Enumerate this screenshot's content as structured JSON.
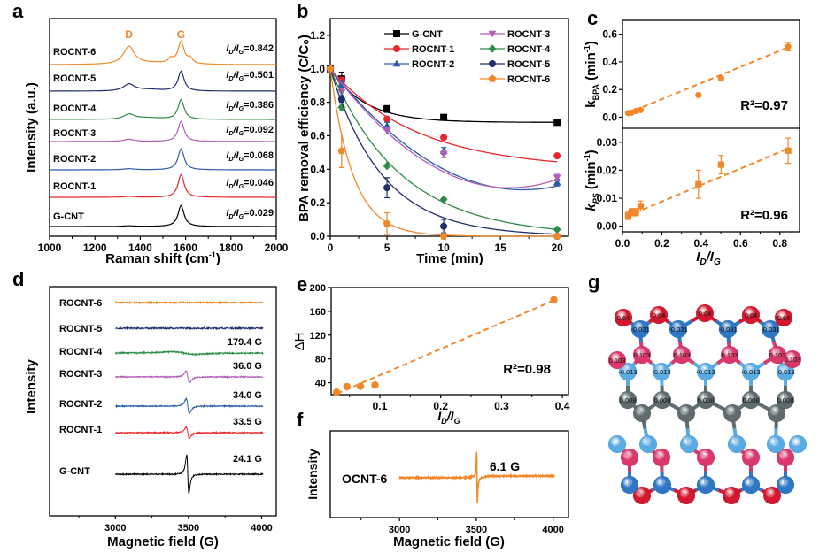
{
  "panel_labels": {
    "a": "a",
    "b": "b",
    "c": "c",
    "d": "d",
    "e": "e",
    "f": "f",
    "g": "g"
  },
  "colors": {
    "G-CNT": "#000000",
    "ROCNT-1": "#e8262b",
    "ROCNT-2": "#2a5caa",
    "ROCNT-3": "#b35cb8",
    "ROCNT-4": "#2e8b45",
    "ROCNT-5": "#1f2f6b",
    "ROCNT-6": "#f0882a",
    "accent": "#f0882a",
    "peak_label": "#f0882a"
  },
  "chart_data": [
    {
      "id": "a",
      "type": "line",
      "title": "",
      "xlabel": "Raman shift (cm-1)",
      "xlabel_main": "Raman shift (cm",
      "xlabel_sup": "-1",
      "xlabel_end": ")",
      "ylabel": "Intensity (a.u.)",
      "xlim": [
        1000,
        2000
      ],
      "xticks": [
        1000,
        1200,
        1400,
        1600,
        1800,
        2000
      ],
      "peaks": [
        {
          "label": "D",
          "x": 1350
        },
        {
          "label": "G",
          "x": 1580
        }
      ],
      "series": [
        {
          "name": "ROCNT-6",
          "ratio_label": "=0.842",
          "ratio": 0.842,
          "d_height": 0.62,
          "g_height": 0.78,
          "shoulders": true
        },
        {
          "name": "ROCNT-5",
          "ratio_label": "=0.501",
          "ratio": 0.501,
          "d_height": 0.3,
          "g_height": 0.8
        },
        {
          "name": "ROCNT-4",
          "ratio_label": "=0.386",
          "ratio": 0.386,
          "d_height": 0.22,
          "g_height": 0.8
        },
        {
          "name": "ROCNT-3",
          "ratio_label": "=0.092",
          "ratio": 0.092,
          "d_height": 0.1,
          "g_height": 0.82
        },
        {
          "name": "ROCNT-2",
          "ratio_label": "=0.068",
          "ratio": 0.068,
          "d_height": 0.05,
          "g_height": 0.85
        },
        {
          "name": "ROCNT-1",
          "ratio_label": "=0.046",
          "ratio": 0.046,
          "d_height": 0.04,
          "g_height": 0.92
        },
        {
          "name": "G-CNT",
          "ratio_label": "=0.029",
          "ratio": 0.029,
          "d_height": 0.03,
          "g_height": 0.85
        }
      ],
      "ratio_prefix_i": "I",
      "ratio_sub_d": "D",
      "ratio_sub_g": "G"
    },
    {
      "id": "b",
      "type": "line",
      "xlabel": "Time (min)",
      "ylabel": "BPA removal efficiency (C/C₀)",
      "xlim": [
        0,
        21
      ],
      "ylim": [
        0,
        1.3
      ],
      "xticks": [
        0,
        5,
        10,
        15,
        20
      ],
      "yticks": [
        0.0,
        0.2,
        0.4,
        0.6,
        0.8,
        1.0,
        1.2
      ],
      "ytick_labels": [
        "0.0",
        "0.2",
        "0.4",
        "0.6",
        "0.8",
        "1.0",
        "1.2"
      ],
      "x": [
        0,
        1,
        5,
        10,
        20
      ],
      "legend_position": "top-right",
      "series": [
        {
          "name": "G-CNT",
          "marker": "square",
          "values": [
            1.0,
            0.94,
            0.76,
            0.71,
            0.68
          ],
          "errors": [
            0.01,
            0.04,
            0.02,
            0.01,
            0.01
          ],
          "k": 0.33,
          "plateau": 0.68
        },
        {
          "name": "ROCNT-1",
          "marker": "circle",
          "values": [
            1.0,
            0.93,
            0.7,
            0.59,
            0.48
          ],
          "errors": [
            0.01,
            0.02,
            0.01,
            0.01,
            0.01
          ],
          "k": 0.13,
          "plateau": 0.4
        },
        {
          "name": "ROCNT-2",
          "marker": "triangle-up",
          "values": [
            1.0,
            0.91,
            0.66,
            0.51,
            0.32
          ],
          "errors": [
            0.01,
            0.02,
            0.02,
            0.02,
            0.02
          ],
          "k": 0.06,
          "plateau": 0.0
        },
        {
          "name": "ROCNT-3",
          "marker": "triangle-down",
          "values": [
            1.0,
            0.86,
            0.63,
            0.49,
            0.35
          ],
          "errors": [
            0.01,
            0.02,
            0.02,
            0.02,
            0.02
          ],
          "k": 0.055,
          "plateau": 0.0
        },
        {
          "name": "ROCNT-4",
          "marker": "diamond",
          "values": [
            1.0,
            0.77,
            0.42,
            0.22,
            0.04
          ],
          "errors": [
            0.01,
            0.02,
            0.01,
            0.01,
            0.01
          ],
          "k": 0.16,
          "plateau": 0.0
        },
        {
          "name": "ROCNT-5",
          "marker": "circle",
          "values": [
            1.0,
            0.82,
            0.29,
            0.06,
            0.0
          ],
          "errors": [
            0.01,
            0.02,
            0.06,
            0.04,
            0.01
          ],
          "k": 0.22,
          "plateau": 0.0
        },
        {
          "name": "ROCNT-6",
          "marker": "pentagon",
          "values": [
            1.0,
            0.51,
            0.075,
            0.0,
            0.0
          ],
          "errors": [
            0.01,
            0.1,
            0.065,
            0.01,
            0.01
          ],
          "k": 0.5,
          "plateau": 0.0
        }
      ]
    },
    {
      "id": "c-top",
      "type": "scatter",
      "ylabel_main": "k",
      "ylabel_sub": "BPA",
      "ylabel_end": " (min",
      "ylabel_sup": "-1",
      "ylabel_close": ")",
      "xlim": [
        0,
        0.9
      ],
      "ylim": [
        -0.08,
        0.7
      ],
      "yticks": [
        0.0,
        0.2,
        0.4,
        0.6
      ],
      "ytick_labels": [
        "0.0",
        "0.2",
        "0.4",
        "0.6"
      ],
      "x": [
        0.029,
        0.046,
        0.068,
        0.092,
        0.386,
        0.501,
        0.842
      ],
      "y": [
        0.03,
        0.033,
        0.045,
        0.052,
        0.16,
        0.28,
        0.51
      ],
      "errors": [
        0.01,
        0.01,
        0.01,
        0.01,
        0.01,
        0.015,
        0.03
      ],
      "fit": {
        "x0": 0.02,
        "y0": 0.025,
        "x1": 0.85,
        "y1": 0.51
      },
      "annotation": "R²=0.97"
    },
    {
      "id": "c-bottom",
      "type": "scatter",
      "xlabel_i": "I",
      "xlabel_sub_d": "D",
      "xlabel_sub_g": "G",
      "ylabel_main": "k",
      "ylabel_sub": "PS",
      "ylabel_end": " (min",
      "ylabel_sup": "-1",
      "ylabel_close": ")",
      "xlim": [
        0,
        0.9
      ],
      "ylim": [
        -0.002,
        0.035
      ],
      "xticks": [
        0.0,
        0.2,
        0.4,
        0.6,
        0.8
      ],
      "xtick_labels": [
        "0.0",
        "0.2",
        "0.4",
        "0.6",
        "0.8"
      ],
      "yticks": [
        0.0,
        0.01,
        0.02,
        0.03
      ],
      "ytick_labels": [
        "0.00",
        "0.01",
        "0.02",
        "0.03"
      ],
      "x": [
        0.029,
        0.046,
        0.068,
        0.092,
        0.386,
        0.501,
        0.842
      ],
      "y": [
        0.0037,
        0.005,
        0.005,
        0.0072,
        0.015,
        0.022,
        0.027
      ],
      "errors": [
        0.0013,
        0.0013,
        0.0013,
        0.0018,
        0.005,
        0.0033,
        0.0045
      ],
      "fit": {
        "x0": 0.02,
        "y0": 0.0035,
        "x1": 0.85,
        "y1": 0.028
      },
      "annotation": "R²=0.96"
    },
    {
      "id": "d",
      "type": "line",
      "xlabel": "Magnetic field (G)",
      "ylabel": "Intensity",
      "xlim": [
        2550,
        4100
      ],
      "xticks": [
        3000,
        3500,
        4000
      ],
      "minor_ticks": [
        2750,
        3250,
        3750
      ],
      "series": [
        {
          "name": "ROCNT-6",
          "linewidth_label": "",
          "amp": 0.0,
          "width": 0
        },
        {
          "name": "ROCNT-5",
          "linewidth_label": "",
          "amp": 0.0,
          "width": 0
        },
        {
          "name": "ROCNT-4",
          "linewidth_label": "179.4 G",
          "amp": 0.12,
          "width": 180
        },
        {
          "name": "ROCNT-3",
          "linewidth_label": "36.0 G",
          "amp": 0.8,
          "width": 36
        },
        {
          "name": "ROCNT-2",
          "linewidth_label": "34.0 G",
          "amp": 1.0,
          "width": 34
        },
        {
          "name": "ROCNT-1",
          "linewidth_label": "33.5 G",
          "amp": 0.75,
          "width": 33
        },
        {
          "name": "G-CNT",
          "linewidth_label": "24.1 G",
          "amp": 2.6,
          "width": 24
        }
      ]
    },
    {
      "id": "e",
      "type": "scatter",
      "xlabel_i": "I",
      "xlabel_sub_d": "D",
      "xlabel_sub_g": "G",
      "ylabel": "ΔH",
      "xlim": [
        0.02,
        0.41
      ],
      "ylim": [
        20,
        200
      ],
      "xticks": [
        0.1,
        0.2,
        0.3,
        0.4
      ],
      "xtick_labels": [
        "0.1",
        "0.2",
        "0.3",
        "0.4"
      ],
      "yticks": [
        40,
        80,
        120,
        160,
        200
      ],
      "ytick_labels": [
        "40",
        "80",
        "120",
        "160",
        "200"
      ],
      "x": [
        0.029,
        0.046,
        0.068,
        0.092,
        0.386
      ],
      "y": [
        24.1,
        33.5,
        34.0,
        36.0,
        179.4
      ],
      "fit": {
        "x0": 0.03,
        "y0": 22,
        "x1": 0.385,
        "y1": 178
      },
      "annotation": "R²=0.98"
    },
    {
      "id": "f",
      "type": "line",
      "xlabel": "Magnetic field (G)",
      "ylabel": "Intensity",
      "xlim": [
        2550,
        4100
      ],
      "xticks": [
        3000,
        3500,
        4000
      ],
      "minor_ticks": [
        2750,
        3250,
        3750
      ],
      "series": [
        {
          "name": "OCNT-6",
          "linewidth_label": "6.1 G",
          "center": 3505,
          "width": 6
        }
      ]
    }
  ],
  "structure_g": {
    "row1_labels": [
      "0.64",
      "0.64",
      "0.64",
      "0.64",
      "0.64"
    ],
    "row2_labels": [
      "-0.031",
      "-0.031",
      "-0.031",
      "-0.031"
    ],
    "row3_labels": [
      "0.103",
      "0.103",
      "0.103",
      "0.103",
      "0.103",
      "0.103"
    ],
    "row4_labels": [
      "-0.013",
      "-0.013",
      "-0.013",
      "-0.013",
      "-0.013"
    ],
    "row5_labels": [
      "0.008",
      "0.008",
      "0.008",
      "0.008",
      "0.008"
    ],
    "atom_colors": {
      "O_red": "#d3172f",
      "B_blue": "#2f77c4",
      "N_pink": "#d8386a",
      "light_blue": "#5aaae4",
      "C_gray": "#5f6b6e"
    }
  }
}
